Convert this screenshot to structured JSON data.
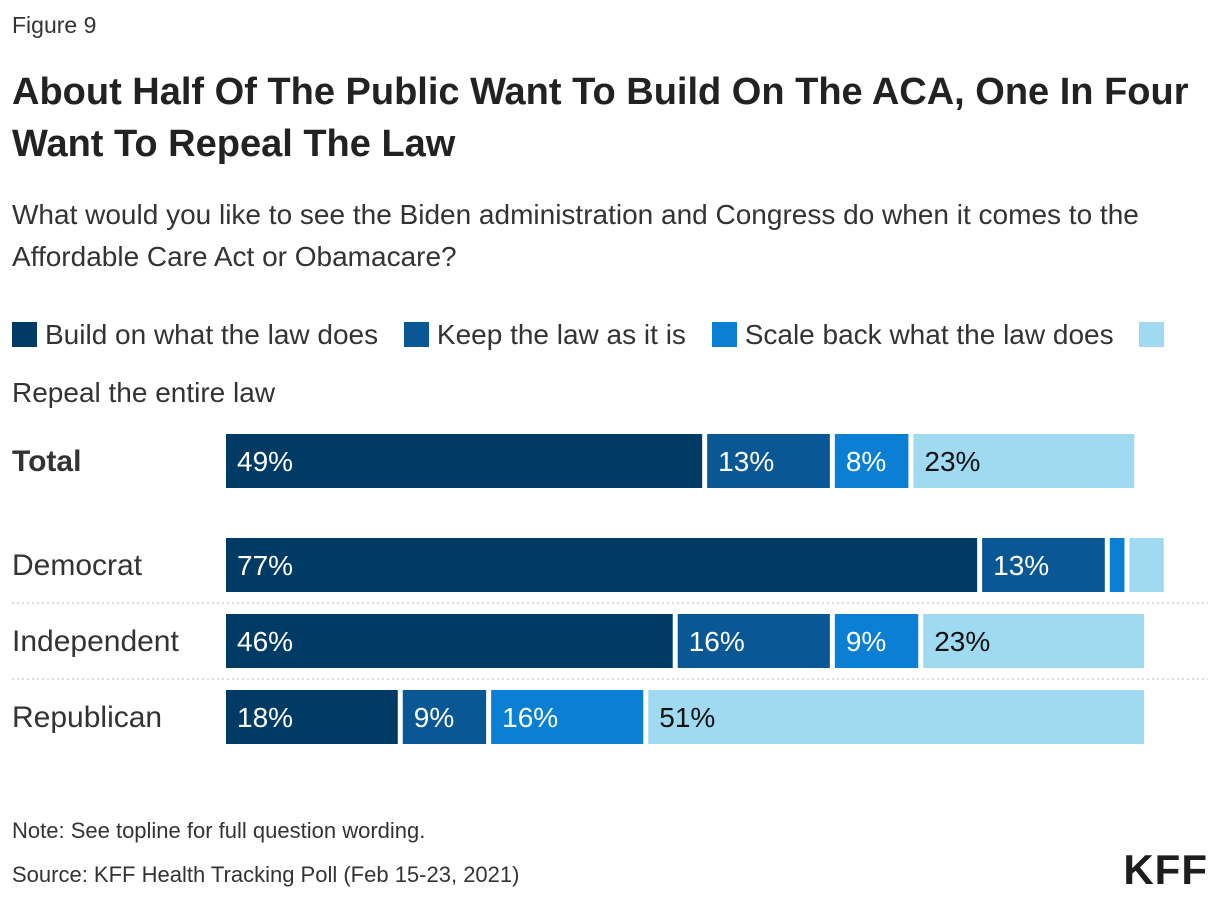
{
  "figure_label": "Figure 9",
  "title": "About Half Of The Public Want To Build On The ACA, One In Four Want To Repeal The Law",
  "subtitle": "What would you like to see the Biden administration and Congress do when it comes to the Affordable Care Act or Obamacare?",
  "note": "Note: See topline for full question wording.",
  "source": "Source: KFF Health Tracking Poll (Feb 15-23, 2021)",
  "logo": "KFF",
  "colors": {
    "build": "#003b66",
    "keep": "#0a5796",
    "scale": "#0b7fd3",
    "repeal": "#9fdaf0"
  },
  "legend": [
    {
      "label": "Build on what the law does",
      "color_key": "build"
    },
    {
      "label": "Keep the law as it is",
      "color_key": "keep"
    },
    {
      "label": "Scale back what the law does",
      "color_key": "scale"
    },
    {
      "label": "Repeal the entire law",
      "color_key": "repeal"
    }
  ],
  "chart_data": {
    "type": "bar",
    "orientation": "horizontal",
    "stacked": true,
    "categories": [
      "Total",
      "Democrat",
      "Independent",
      "Republican"
    ],
    "series": [
      {
        "name": "Build on what the law does",
        "values": [
          49,
          77,
          46,
          18
        ],
        "labels": [
          "49%",
          "77%",
          "46%",
          "18%"
        ]
      },
      {
        "name": "Keep the law as it is",
        "values": [
          13,
          13,
          16,
          9
        ],
        "labels": [
          "13%",
          "13%",
          "16%",
          "9%"
        ]
      },
      {
        "name": "Scale back what the law does",
        "values": [
          8,
          2,
          9,
          16
        ],
        "labels": [
          "8%",
          "",
          "9%",
          "16%"
        ]
      },
      {
        "name": "Repeal the entire law",
        "values": [
          23,
          4,
          23,
          51
        ],
        "labels": [
          "23%",
          "",
          "23%",
          "51%"
        ]
      }
    ],
    "xlim": [
      0,
      100
    ],
    "grid": false,
    "legend_position": "top"
  }
}
